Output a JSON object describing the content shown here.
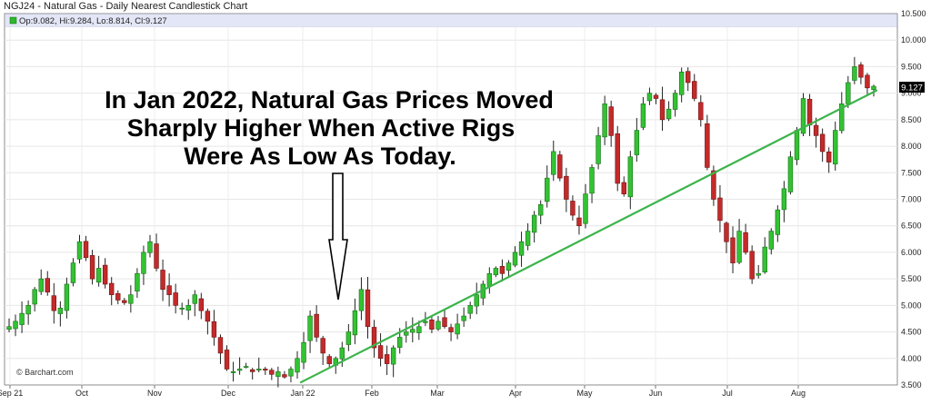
{
  "chart_data": {
    "type": "candlestick",
    "title": "NGJ24 - Natural Gas - Daily Nearest Candlestick Chart",
    "ohlc_legend": "Op:9.082, Hi:9.284, Lo:8.814, Cl:9.127",
    "last_price_label": "9.127",
    "source_credit": "© Barchart.com",
    "ylim": [
      3.5,
      10.5
    ],
    "y_ticks": [
      "3.500",
      "4.000",
      "4.500",
      "5.000",
      "5.500",
      "6.000",
      "6.500",
      "7.000",
      "7.500",
      "8.000",
      "8.500",
      "9.000",
      "9.500",
      "10.000",
      "10.500"
    ],
    "x_month_labels": [
      "Sep 21",
      "Oct",
      "Nov",
      "Dec",
      "Jan 22",
      "Feb",
      "Mar",
      "Apr",
      "May",
      "Jun",
      "Jul",
      "Aug"
    ],
    "annotation_lines": [
      "In Jan 2022, Natural Gas Prices Moved",
      "Sharply Higher When Active Rigs",
      "Were As Low As Today."
    ],
    "trendline": {
      "x_from": "2022-01-03",
      "y_from": 3.55,
      "x_to": "2022-08-30",
      "y_to": 9.05
    },
    "close_path": [
      4.6,
      4.7,
      4.85,
      5.0,
      5.3,
      5.5,
      5.25,
      4.9,
      4.95,
      5.4,
      5.8,
      6.2,
      5.9,
      5.5,
      5.7,
      5.4,
      5.2,
      5.1,
      5.05,
      5.2,
      5.6,
      6.0,
      6.2,
      5.7,
      5.3,
      5.2,
      5.0,
      4.95,
      5.0,
      5.2,
      4.9,
      4.7,
      4.4,
      4.1,
      3.8,
      3.75,
      3.8,
      3.85,
      3.75,
      3.8,
      3.78,
      3.7,
      3.75,
      3.65,
      3.8,
      4.0,
      4.3,
      4.8,
      4.4,
      4.1,
      3.9,
      4.0,
      4.2,
      4.5,
      4.9,
      5.3,
      4.6,
      4.2,
      4.0,
      3.9,
      4.2,
      4.4,
      4.5,
      4.55,
      4.6,
      4.7,
      4.55,
      4.7,
      4.6,
      4.5,
      4.65,
      4.8,
      5.0,
      5.2,
      5.4,
      5.6,
      5.7,
      5.6,
      5.8,
      6.0,
      6.2,
      6.4,
      6.7,
      6.9,
      7.4,
      7.9,
      7.4,
      7.0,
      6.7,
      6.5,
      7.1,
      7.6,
      8.2,
      8.8,
      8.2,
      7.3,
      7.1,
      7.8,
      8.3,
      8.8,
      9.0,
      8.9,
      8.5,
      8.7,
      9.0,
      9.4,
      9.2,
      8.9,
      8.5,
      7.6,
      7.0,
      6.6,
      6.2,
      5.8,
      6.4,
      6.0,
      5.5,
      5.6,
      6.1,
      6.4,
      6.8,
      7.2,
      7.8,
      8.3,
      8.9,
      8.4,
      8.2,
      7.9,
      7.7,
      8.3,
      8.8,
      9.2,
      9.5,
      9.3,
      9.1,
      9.13
    ]
  }
}
